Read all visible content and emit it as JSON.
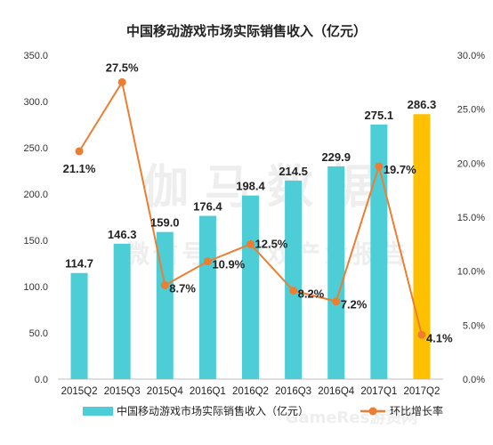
{
  "chart_data": {
    "type": "bar",
    "title": "中国移动游戏市场实际销售收入（亿元）",
    "categories": [
      "2015Q2",
      "2015Q3",
      "2015Q4",
      "2016Q1",
      "2016Q2",
      "2016Q3",
      "2016Q4",
      "2017Q1",
      "2017Q2"
    ],
    "series": [
      {
        "name": "中国移动游戏市场实际销售收入（亿元）",
        "type": "bar",
        "axis": "left",
        "values": [
          114.7,
          146.3,
          159.0,
          176.4,
          198.4,
          214.5,
          229.9,
          275.1,
          286.3
        ],
        "value_labels": [
          "114.7",
          "146.3",
          "159.0",
          "176.4",
          "198.4",
          "214.5",
          "229.9",
          "275.1",
          "286.3"
        ],
        "color": "#4dcdd6",
        "highlight_index": 8,
        "highlight_color": "#ffc000"
      },
      {
        "name": "环比增长率",
        "type": "line",
        "axis": "right",
        "values": [
          21.1,
          27.5,
          8.7,
          10.9,
          12.5,
          8.2,
          7.2,
          19.7,
          4.1
        ],
        "value_labels": [
          "21.1%",
          "27.5%",
          "8.7%",
          "10.9%",
          "12.5%",
          "8.2%",
          "7.2%",
          "19.7%",
          "4.1%"
        ],
        "color": "#ed7d31"
      }
    ],
    "y_left": {
      "lim": [
        0,
        350
      ],
      "ticks": [
        "0.0",
        "50.0",
        "100.0",
        "150.0",
        "200.0",
        "250.0",
        "300.0",
        "350.0"
      ]
    },
    "y_right": {
      "lim": [
        0,
        30
      ],
      "ticks": [
        "0.0%",
        "5.0%",
        "10.0%",
        "15.0%",
        "20.0%",
        "25.0%",
        "30.0%"
      ]
    },
    "grid": false,
    "legend_position": "bottom"
  },
  "watermark": {
    "main": "伽马数据",
    "sub": "微信号：游戏产业报告",
    "corner": "GameRes游资网"
  }
}
